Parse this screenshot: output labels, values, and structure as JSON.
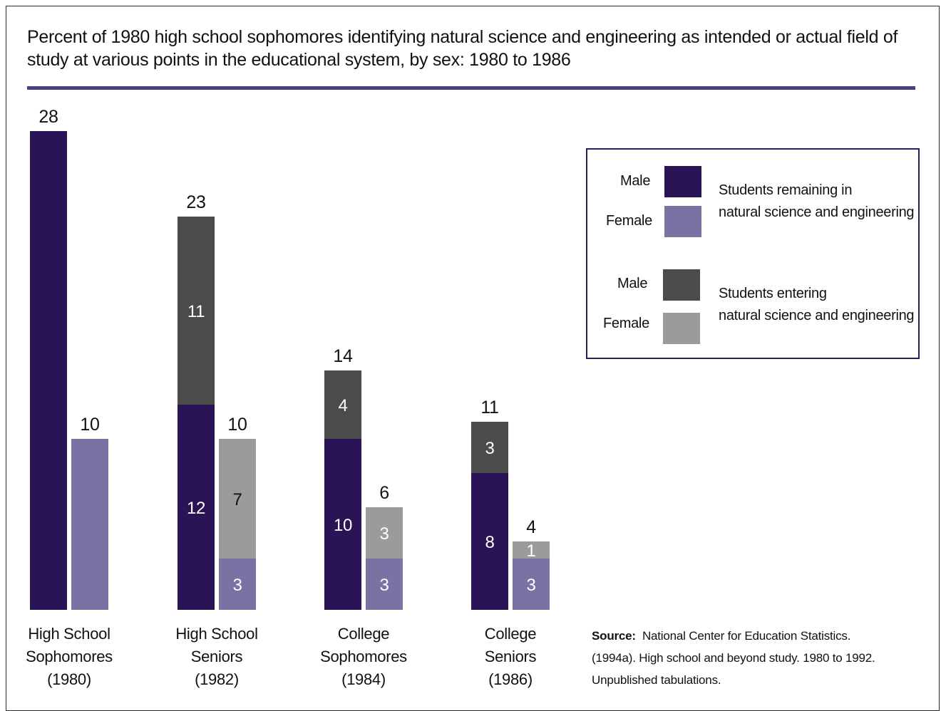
{
  "title": "Percent of 1980 high school sophomores identifying natural science and engineering as intended or actual field of study at various points in the educational system, by sex: 1980 to 1986",
  "colors": {
    "male_remaining": "#2a1456",
    "female_remaining": "#7b72a3",
    "male_entering": "#4b4b4b",
    "female_entering": "#9b9b9b",
    "rule": "#4b3d86"
  },
  "legend": {
    "group1": {
      "male_label": "Male",
      "female_label": "Female",
      "line1": "Students remaining in",
      "line2": "natural science and engineering"
    },
    "group2": {
      "male_label": "Male",
      "female_label": "Female",
      "line1": "Students entering",
      "line2": "natural science and engineering"
    }
  },
  "source": {
    "label": "Source:",
    "text": "National Center for Education Statistics. (1994a). High school and beyond study. 1980 to 1992. Unpublished tabulations."
  },
  "chart_data": {
    "type": "bar",
    "stacked": true,
    "ylim": [
      0,
      28
    ],
    "categories": [
      [
        "High School",
        "Sophomores",
        "(1980)"
      ],
      [
        "High School",
        "Seniors",
        "(1982)"
      ],
      [
        "College",
        "Sophomores",
        "(1984)"
      ],
      [
        "College",
        "Seniors",
        "(1986)"
      ]
    ],
    "bars": [
      {
        "category": 0,
        "sex": "Male",
        "total": 28,
        "remaining": 28,
        "entering": 0
      },
      {
        "category": 0,
        "sex": "Female",
        "total": 10,
        "remaining": 10,
        "entering": 0
      },
      {
        "category": 1,
        "sex": "Male",
        "total": 23,
        "remaining": 12,
        "entering": 11
      },
      {
        "category": 1,
        "sex": "Female",
        "total": 10,
        "remaining": 3,
        "entering": 7
      },
      {
        "category": 2,
        "sex": "Male",
        "total": 14,
        "remaining": 10,
        "entering": 4
      },
      {
        "category": 2,
        "sex": "Female",
        "total": 6,
        "remaining": 3,
        "entering": 3
      },
      {
        "category": 3,
        "sex": "Male",
        "total": 11,
        "remaining": 8,
        "entering": 3
      },
      {
        "category": 3,
        "sex": "Female",
        "total": 4,
        "remaining": 3,
        "entering": 1
      }
    ],
    "segment_labels_shown": false
  }
}
